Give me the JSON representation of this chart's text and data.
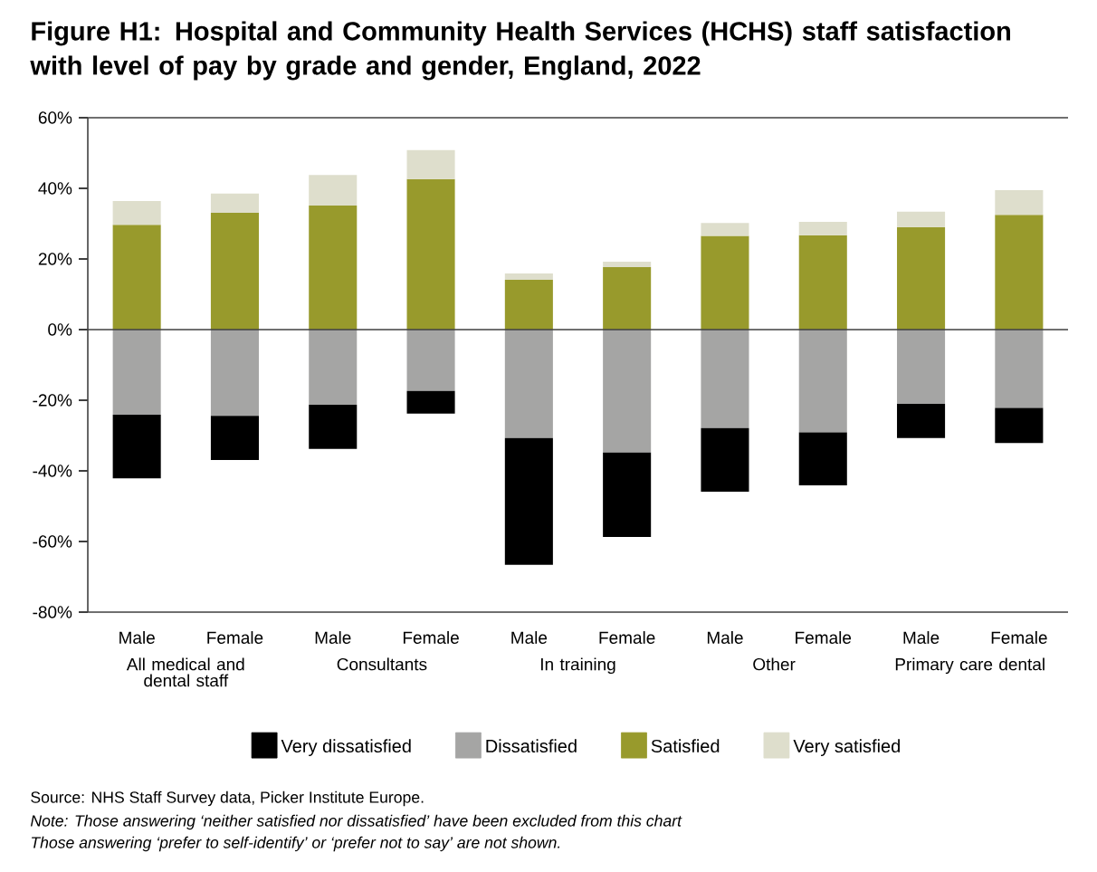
{
  "chart_data": {
    "type": "bar",
    "stacked": true,
    "title": "Figure H1: Hospital and Community Health Services (HCHS) staff satisfaction with level of pay by grade and gender, England, 2022",
    "categories": [
      "Male",
      "Female",
      "Male",
      "Female",
      "Male",
      "Female",
      "Male",
      "Female",
      "Male",
      "Female"
    ],
    "series": [
      {
        "name": "Very dissatisfied",
        "color": "#000000",
        "values": [
          -18.0,
          -12.5,
          -12.5,
          -6.4,
          -35.9,
          -23.9,
          -18.0,
          -15.0,
          -9.7,
          -9.9
        ]
      },
      {
        "name": "Dissatisfied",
        "color": "#a5a5a4",
        "values": [
          -24.1,
          -24.4,
          -21.3,
          -17.4,
          -30.7,
          -34.8,
          -27.9,
          -29.1,
          -21.0,
          -22.2
        ]
      },
      {
        "name": "Satisfied",
        "color": "#989a2c",
        "values": [
          29.7,
          33.1,
          35.1,
          42.6,
          14.1,
          17.7,
          26.5,
          26.7,
          29.0,
          32.5
        ]
      },
      {
        "name": "Very satisfied",
        "color": "#dedecc",
        "values": [
          6.7,
          5.4,
          8.7,
          8.2,
          1.8,
          1.5,
          3.7,
          3.8,
          4.4,
          7.0
        ]
      }
    ],
    "ylim": [
      -80,
      60
    ],
    "yticks": [
      {
        "value": -80,
        "label": "-80%"
      },
      {
        "value": -60,
        "label": "-60%"
      },
      {
        "value": -40,
        "label": "-40%"
      },
      {
        "value": -20,
        "label": "-20%"
      },
      {
        "value": 0,
        "label": "0%"
      },
      {
        "value": 20,
        "label": "20%"
      },
      {
        "value": 40,
        "label": "40%"
      },
      {
        "value": 60,
        "label": "60%"
      }
    ],
    "legend": "bottom",
    "annotations": [
      "All medical and dental staff",
      "Consultants",
      "In training",
      "Other",
      "Primary care dental",
      "Source: NHS Staff Survey data, Picker Institute Europe.",
      "Note: Those answering ‘neither satisfied nor dissatisfied’ have been excluded from this chart",
      "Those answering ‘prefer to self-identify’ or ‘prefer not to say’ are not shown."
    ]
  }
}
